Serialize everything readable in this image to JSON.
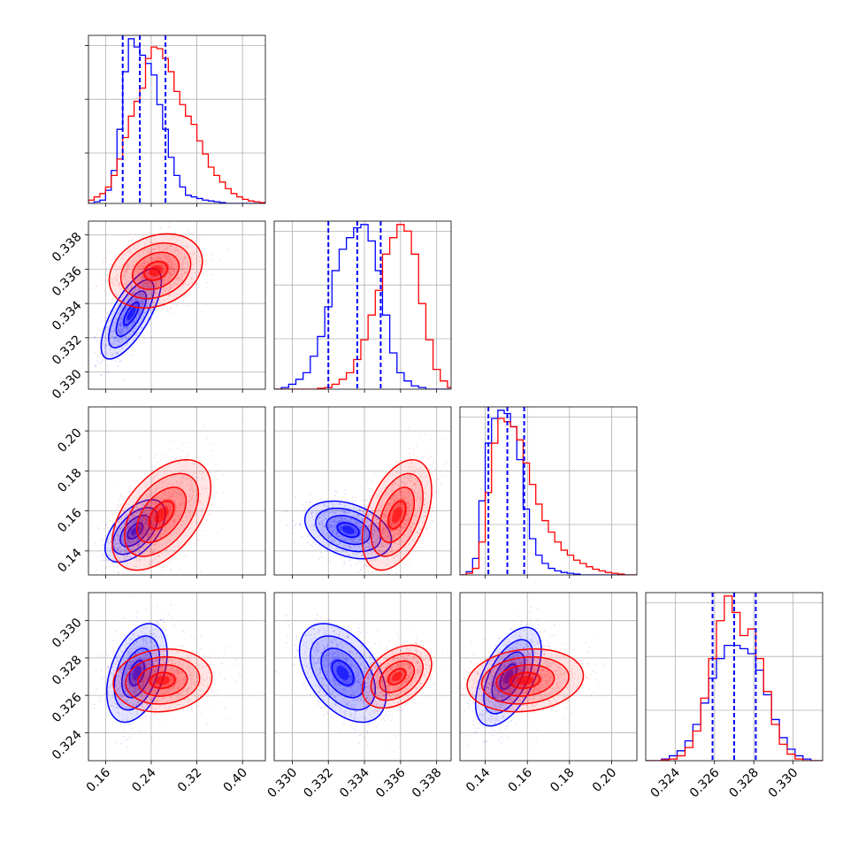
{
  "chart_data": {
    "type": "corner",
    "title": "",
    "n_params": 4,
    "series": [
      {
        "color": "#0000ff"
      },
      {
        "color": "#ff0000"
      }
    ],
    "quantile_lines": {
      "color": "#0000ff",
      "style": "dashed"
    },
    "grid": true,
    "params": [
      {
        "range": [
          0.13,
          0.44
        ],
        "ticks": [
          0.16,
          0.24,
          0.32,
          0.4
        ],
        "tick_labels": [
          "0.16",
          "0.24",
          "0.32",
          "0.40"
        ],
        "quantiles": [
          0.19,
          0.22,
          0.265
        ],
        "hist_bins": [
          0.13,
          0.14,
          0.15,
          0.16,
          0.17,
          0.18,
          0.19,
          0.2,
          0.21,
          0.22,
          0.23,
          0.24,
          0.25,
          0.26,
          0.27,
          0.28,
          0.29,
          0.3,
          0.31,
          0.32,
          0.33,
          0.34,
          0.35,
          0.36,
          0.37,
          0.38,
          0.39,
          0.4,
          0.41,
          0.42,
          0.43,
          0.44
        ],
        "hist": [
          [
            0.0,
            0.01,
            0.02,
            0.08,
            0.2,
            0.45,
            0.8,
            1.0,
            0.95,
            0.9,
            0.85,
            0.78,
            0.6,
            0.45,
            0.28,
            0.17,
            0.1,
            0.05,
            0.04,
            0.03,
            0.02,
            0.015,
            0.01,
            0.005,
            0.0,
            0.0,
            0.0,
            0.0,
            0.0,
            0.0,
            0.0
          ],
          [
            0.02,
            0.04,
            0.06,
            0.1,
            0.17,
            0.27,
            0.4,
            0.53,
            0.62,
            0.7,
            0.88,
            0.95,
            0.94,
            0.88,
            0.8,
            0.68,
            0.6,
            0.53,
            0.48,
            0.38,
            0.3,
            0.22,
            0.17,
            0.13,
            0.09,
            0.06,
            0.04,
            0.025,
            0.015,
            0.01,
            0.005
          ]
        ]
      },
      {
        "range": [
          0.329,
          0.3388
        ],
        "ticks": [
          0.33,
          0.332,
          0.334,
          0.336,
          0.338
        ],
        "tick_labels": [
          "0.330",
          "0.332",
          "0.334",
          "0.336",
          "0.338"
        ],
        "quantiles": [
          0.332,
          0.3336,
          0.3349
        ],
        "hist_bins": [
          0.329,
          0.3294,
          0.3298,
          0.3302,
          0.3306,
          0.331,
          0.3314,
          0.3318,
          0.3322,
          0.3326,
          0.333,
          0.3334,
          0.3338,
          0.3342,
          0.3346,
          0.335,
          0.3354,
          0.3358,
          0.3362,
          0.3366,
          0.337,
          0.3374,
          0.3378,
          0.3382,
          0.3386,
          0.3388
        ],
        "hist": [
          [
            0.0,
            0.01,
            0.03,
            0.06,
            0.1,
            0.2,
            0.32,
            0.5,
            0.72,
            0.85,
            0.92,
            0.98,
            1.0,
            0.9,
            0.72,
            0.45,
            0.22,
            0.1,
            0.05,
            0.02,
            0.01,
            0.0,
            0.0,
            0.0,
            0.0
          ],
          [
            0.0,
            0.0,
            0.0,
            0.0,
            0.0,
            0.0,
            0.005,
            0.01,
            0.03,
            0.06,
            0.1,
            0.18,
            0.3,
            0.45,
            0.6,
            0.82,
            0.92,
            1.0,
            0.96,
            0.82,
            0.52,
            0.3,
            0.12,
            0.05,
            0.01
          ]
        ]
      },
      {
        "range": [
          0.128,
          0.212
        ],
        "ticks": [
          0.14,
          0.16,
          0.18,
          0.2
        ],
        "tick_labels": [
          "0.14",
          "0.16",
          "0.18",
          "0.20"
        ],
        "quantiles": [
          0.1415,
          0.1505,
          0.1585
        ],
        "hist_bins": [
          0.128,
          0.131,
          0.134,
          0.137,
          0.14,
          0.143,
          0.146,
          0.149,
          0.152,
          0.155,
          0.158,
          0.161,
          0.164,
          0.167,
          0.17,
          0.173,
          0.176,
          0.179,
          0.182,
          0.185,
          0.188,
          0.191,
          0.194,
          0.197,
          0.2,
          0.203,
          0.206,
          0.209,
          0.212
        ],
        "hist": [
          [
            0.0,
            0.02,
            0.1,
            0.45,
            0.8,
            0.95,
            1.0,
            0.98,
            0.9,
            0.7,
            0.4,
            0.22,
            0.12,
            0.07,
            0.04,
            0.025,
            0.015,
            0.01,
            0.005,
            0.0,
            0.0,
            0.0,
            0.0,
            0.0,
            0.0,
            0.0,
            0.0,
            0.0
          ],
          [
            0.0,
            0.01,
            0.04,
            0.2,
            0.5,
            0.8,
            0.95,
            0.93,
            0.9,
            0.82,
            0.68,
            0.55,
            0.43,
            0.33,
            0.26,
            0.2,
            0.15,
            0.12,
            0.09,
            0.07,
            0.05,
            0.035,
            0.025,
            0.015,
            0.01,
            0.005,
            0.0,
            0.0
          ]
        ]
      },
      {
        "range": [
          0.3225,
          0.3315
        ],
        "ticks": [
          0.324,
          0.326,
          0.328,
          0.33
        ],
        "tick_labels": [
          "0.324",
          "0.326",
          "0.328",
          "0.330"
        ],
        "quantiles": [
          0.3259,
          0.327,
          0.3281
        ],
        "hist_bins": [
          0.3225,
          0.3229,
          0.3233,
          0.3237,
          0.3241,
          0.3245,
          0.3249,
          0.3253,
          0.3257,
          0.3261,
          0.3265,
          0.3269,
          0.3273,
          0.3277,
          0.3281,
          0.3285,
          0.3289,
          0.3293,
          0.3297,
          0.3301,
          0.3305,
          0.3309,
          0.3313,
          0.3315
        ],
        "hist": [
          [
            0.0,
            0.0,
            0.01,
            0.03,
            0.06,
            0.12,
            0.22,
            0.35,
            0.5,
            0.62,
            0.7,
            0.7,
            0.68,
            0.65,
            0.55,
            0.4,
            0.25,
            0.14,
            0.07,
            0.03,
            0.01,
            0.0,
            0.0
          ],
          [
            0.0,
            0.0,
            0.005,
            0.01,
            0.03,
            0.08,
            0.18,
            0.38,
            0.62,
            0.85,
            1.0,
            0.9,
            0.76,
            0.8,
            0.62,
            0.42,
            0.22,
            0.1,
            0.04,
            0.01,
            0.0,
            0.0,
            0.0
          ]
        ]
      }
    ],
    "pairs": [
      {
        "row": 1,
        "col": 0,
        "blobs": [
          {
            "mean": [
              0.205,
              0.3334
            ],
            "sd": [
              0.022,
              0.0011
            ],
            "rho": 0.72
          },
          {
            "mean": [
              0.248,
              0.3359
            ],
            "sd": [
              0.034,
              0.0009
            ],
            "rho": 0.25
          }
        ]
      },
      {
        "row": 2,
        "col": 0,
        "blobs": [
          {
            "mean": [
              0.212,
              0.15
            ],
            "sd": [
              0.022,
              0.0065
            ],
            "rho": 0.55
          },
          {
            "mean": [
              0.258,
              0.158
            ],
            "sd": [
              0.036,
              0.0115
            ],
            "rho": 0.5
          }
        ]
      },
      {
        "row": 2,
        "col": 1,
        "blobs": [
          {
            "mean": [
              0.3331,
              0.1505
            ],
            "sd": [
              0.001,
              0.006
            ],
            "rho": -0.35
          },
          {
            "mean": [
              0.3358,
              0.158
            ],
            "sd": [
              0.0008,
              0.0115
            ],
            "rho": 0.45
          }
        ]
      },
      {
        "row": 3,
        "col": 0,
        "blobs": [
          {
            "mean": [
              0.215,
              0.3272
            ],
            "sd": [
              0.022,
              0.0011
            ],
            "rho": 0.4
          },
          {
            "mean": [
              0.26,
              0.3268
            ],
            "sd": [
              0.036,
              0.0007
            ],
            "rho": 0.1
          }
        ]
      },
      {
        "row": 3,
        "col": 1,
        "blobs": [
          {
            "mean": [
              0.3328,
              0.3272
            ],
            "sd": [
              0.001,
              0.0011
            ],
            "rho": -0.45
          },
          {
            "mean": [
              0.3358,
              0.327
            ],
            "sd": [
              0.0008,
              0.0007
            ],
            "rho": 0.4
          }
        ]
      },
      {
        "row": 3,
        "col": 2,
        "blobs": [
          {
            "mean": [
              0.151,
              0.327
            ],
            "sd": [
              0.0065,
              0.0011
            ],
            "rho": 0.55
          },
          {
            "mean": [
              0.159,
              0.3268
            ],
            "sd": [
              0.0115,
              0.0007
            ],
            "rho": 0.15
          }
        ]
      }
    ]
  }
}
